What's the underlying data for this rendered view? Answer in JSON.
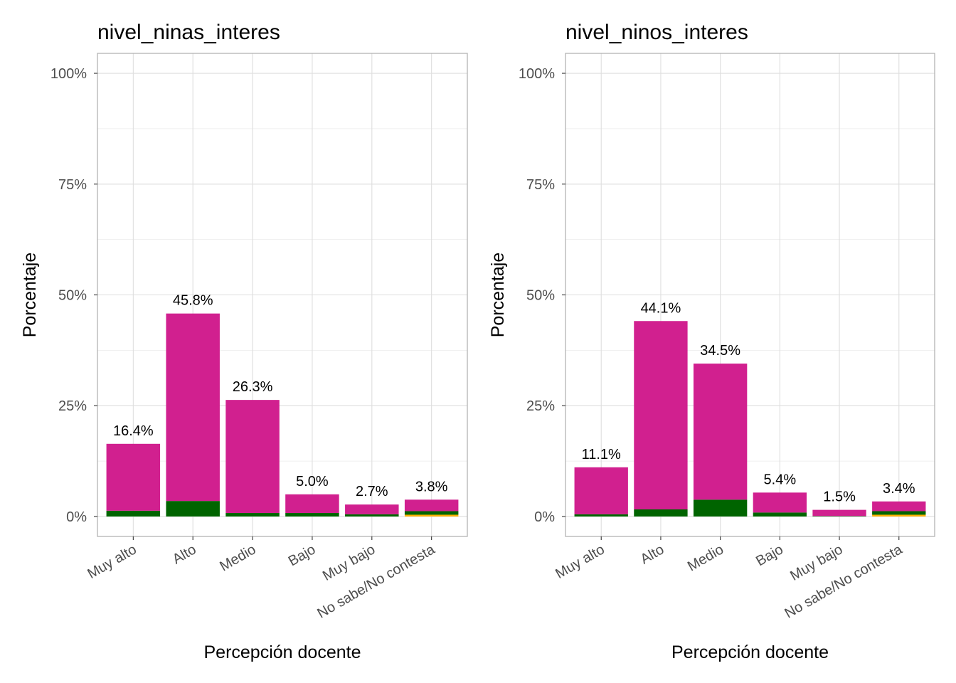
{
  "chart_data": [
    {
      "type": "bar",
      "stacked": true,
      "title": "nivel_ninas_interes",
      "xlabel": "Percepción docente",
      "ylabel": "Porcentaje",
      "ylim": [
        0,
        100
      ],
      "yticks": [
        0,
        25,
        50,
        75,
        100
      ],
      "ytick_labels": [
        "0%",
        "25%",
        "50%",
        "75%",
        "100%"
      ],
      "categories": [
        "Muy alto",
        "Alto",
        "Medio",
        "Bajo",
        "Muy bajo",
        "No sabe/No contesta"
      ],
      "totals": [
        16.4,
        45.8,
        26.3,
        5.0,
        2.7,
        3.8
      ],
      "total_labels": [
        "16.4%",
        "45.8%",
        "26.3%",
        "5.0%",
        "2.7%",
        "3.8%"
      ],
      "series": [
        {
          "color": "#ffb000",
          "values": [
            0,
            0,
            0,
            0,
            0,
            0.4
          ]
        },
        {
          "color": "#006400",
          "values": [
            1.3,
            3.5,
            0.8,
            0.8,
            0.5,
            0.8
          ]
        },
        {
          "color": "#d1208f",
          "values": [
            15.1,
            42.3,
            25.5,
            4.2,
            2.2,
            2.6
          ]
        }
      ]
    },
    {
      "type": "bar",
      "stacked": true,
      "title": "nivel_ninos_interes",
      "xlabel": "Percepción docente",
      "ylabel": "Porcentaje",
      "ylim": [
        0,
        100
      ],
      "yticks": [
        0,
        25,
        50,
        75,
        100
      ],
      "ytick_labels": [
        "0%",
        "25%",
        "50%",
        "75%",
        "100%"
      ],
      "categories": [
        "Muy alto",
        "Alto",
        "Medio",
        "Bajo",
        "Muy bajo",
        "No sabe/No contesta"
      ],
      "totals": [
        11.1,
        44.1,
        34.5,
        5.4,
        1.5,
        3.4
      ],
      "total_labels": [
        "11.1%",
        "44.1%",
        "34.5%",
        "5.4%",
        "1.5%",
        "3.4%"
      ],
      "series": [
        {
          "color": "#ffb000",
          "values": [
            0,
            0,
            0,
            0,
            0,
            0.4
          ]
        },
        {
          "color": "#006400",
          "values": [
            0.5,
            1.6,
            3.8,
            0.9,
            0.1,
            0.8
          ]
        },
        {
          "color": "#d1208f",
          "values": [
            10.6,
            42.5,
            30.7,
            4.5,
            1.4,
            2.2
          ]
        }
      ]
    }
  ]
}
